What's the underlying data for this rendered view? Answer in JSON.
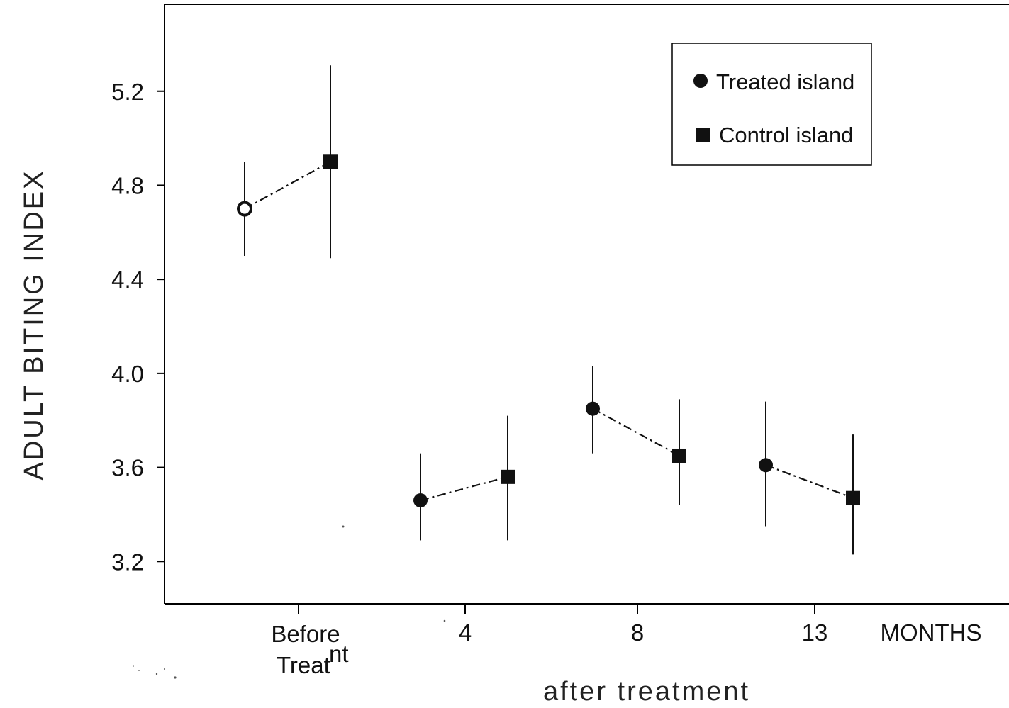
{
  "chart_data": {
    "type": "scatter",
    "title": "",
    "ylabel": "ADULT BITING INDEX",
    "xlabel": "after treatment",
    "x_unit_label": "MONTHS",
    "ylim": [
      3.02,
      5.57
    ],
    "y_ticks": [
      "3.2",
      "3.6",
      "4.0",
      "4.4",
      "4.8",
      "5.2"
    ],
    "y_tick_values": [
      3.2,
      3.6,
      4.0,
      4.4,
      4.8,
      5.2
    ],
    "categories": [
      "Before Treatnt",
      "4",
      "8",
      "13"
    ],
    "x_tick_labels": [
      [
        "Before",
        "Treat",
        "nt"
      ],
      [
        "4"
      ],
      [
        "8"
      ],
      [
        "13"
      ]
    ],
    "legend_placement": "top-right",
    "grid": false,
    "series": [
      {
        "name": "Treated island",
        "marker": "circle",
        "values": [
          4.7,
          3.46,
          3.85,
          3.61
        ],
        "error_low": [
          4.5,
          3.29,
          3.66,
          3.35
        ],
        "error_high": [
          4.9,
          3.66,
          4.03,
          3.88
        ]
      },
      {
        "name": "Control island",
        "marker": "square",
        "values": [
          4.9,
          3.56,
          3.65,
          3.47
        ],
        "error_low": [
          4.49,
          3.29,
          3.44,
          3.23
        ],
        "error_high": [
          5.31,
          3.82,
          3.89,
          3.74
        ]
      }
    ],
    "colors": {
      "marker": "#111111",
      "line": "#111111",
      "background": "#ffffff"
    }
  }
}
